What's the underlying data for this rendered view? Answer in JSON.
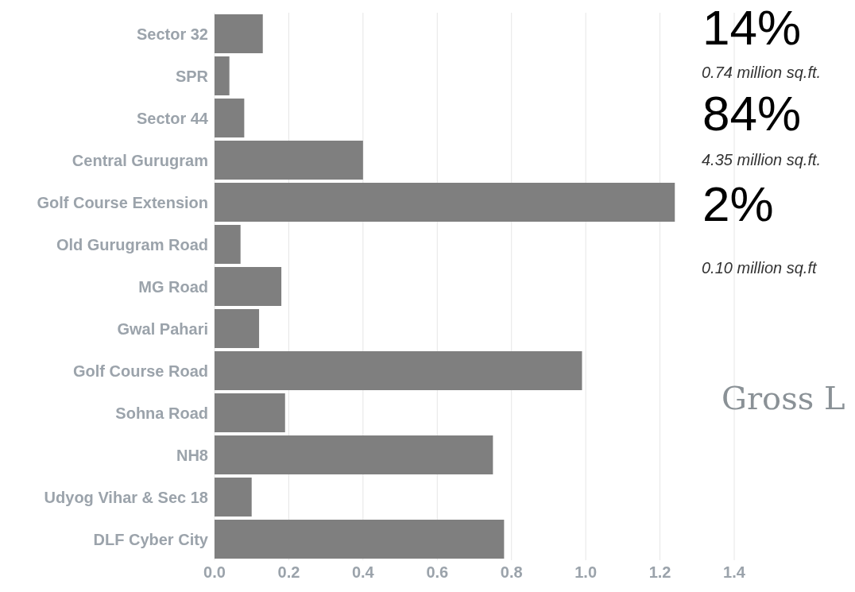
{
  "chart_data": {
    "type": "bar",
    "orientation": "horizontal",
    "categories": [
      "Sector 32",
      "SPR",
      "Sector 44",
      "Central Gurugram",
      "Golf Course Extension",
      "Old Gurugram Road",
      "MG Road",
      "Gwal Pahari",
      "Golf Course Road",
      "Sohna Road",
      "NH8",
      "Udyog Vihar & Sec 18",
      "DLF Cyber City"
    ],
    "values": [
      0.13,
      0.04,
      0.08,
      0.4,
      1.24,
      0.07,
      0.18,
      0.12,
      0.99,
      0.19,
      0.75,
      0.1,
      0.78
    ],
    "color": "#7f7f7f",
    "xlim": [
      0,
      1.4
    ],
    "xticks": [
      {
        "value": 0,
        "label": "0.0"
      },
      {
        "value": 0.2,
        "label": "0.2"
      },
      {
        "value": 0.4,
        "label": "0.4"
      },
      {
        "value": 0.6,
        "label": "0.6"
      },
      {
        "value": 0.8,
        "label": "0.8"
      },
      {
        "value": 1.0,
        "label": "1.0"
      },
      {
        "value": 1.2,
        "label": "1.2"
      },
      {
        "value": 1.4,
        "label": "1.4"
      }
    ],
    "grid": "x",
    "annotations": [
      "14%",
      "0.74 million sq.ft.",
      "84%",
      "4.35 million sq.ft.",
      "2%",
      "0.10 million sq.ft",
      "Gross L"
    ]
  }
}
